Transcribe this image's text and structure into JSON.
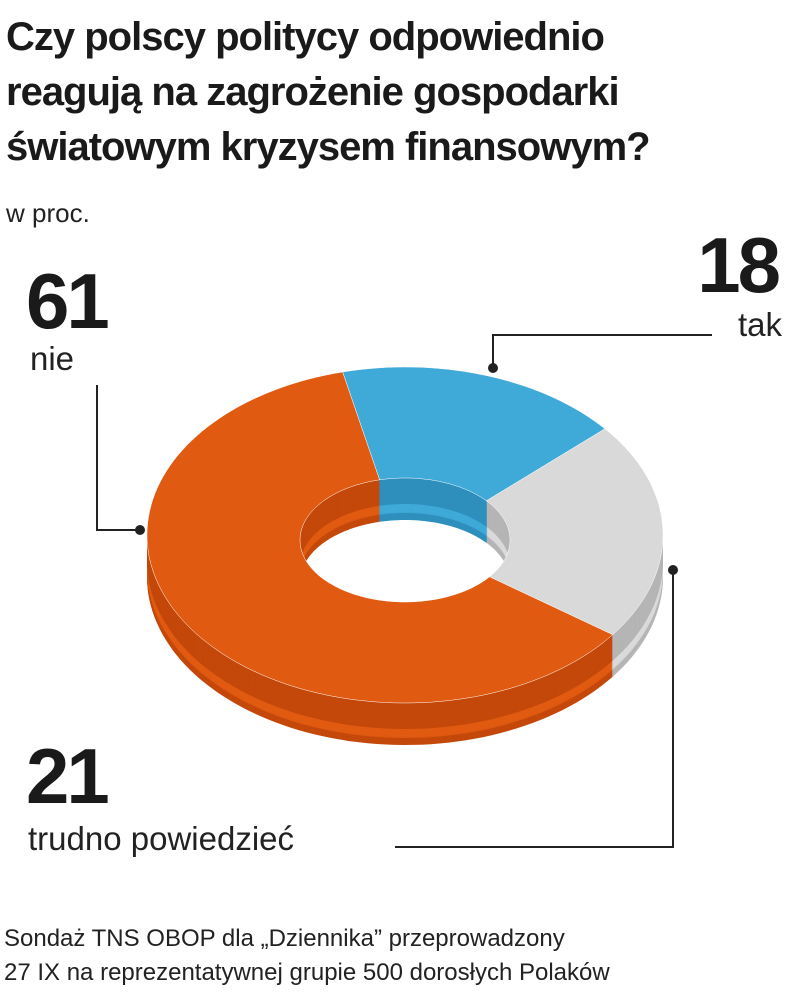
{
  "chart_data": {
    "type": "pie",
    "title": [
      "Czy polscy politycy odpowiednio",
      "reagują na zagrożenie gospodarki",
      "światowym kryzysem finansowym?"
    ],
    "unit": "w proc.",
    "slices": [
      {
        "label": "tak",
        "value": 18,
        "color": "#3fa9d8",
        "side": "#2e8fbd"
      },
      {
        "label": "trudno powiedzieć",
        "value": 21,
        "color": "#d9d9d9",
        "side": "#b5b5b5"
      },
      {
        "label": "nie",
        "value": 61,
        "color": "#e05a12",
        "side": "#c4480a"
      }
    ],
    "style": "3d-donut"
  },
  "footer": [
    "Sondaż TNS OBOP dla „Dziennika” przeprowadzony",
    "27 IX na reprezentatywnej grupie 500 dorosłych Polaków"
  ]
}
